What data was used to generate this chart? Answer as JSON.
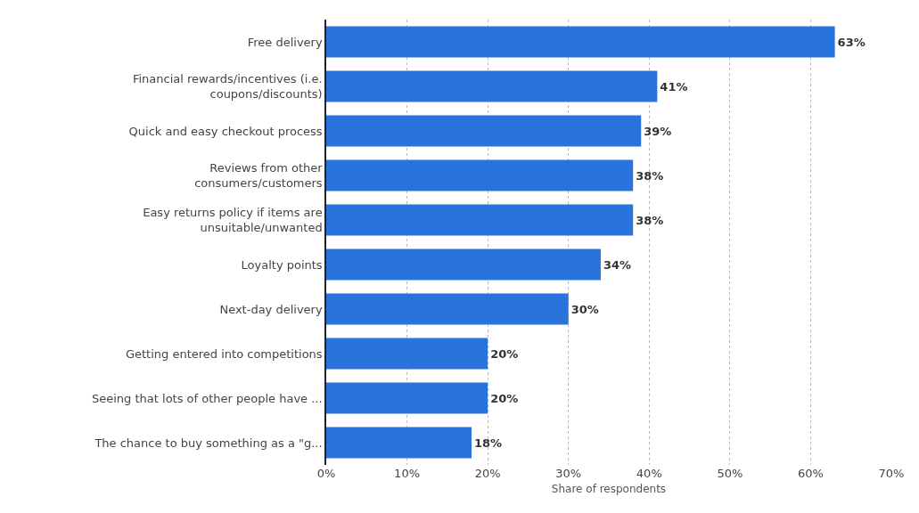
{
  "chart_data": {
    "type": "bar",
    "orientation": "horizontal",
    "xlabel": "Share of respondents",
    "categories": [
      "Free delivery",
      "Financial rewards/incentives (i.e.\ncoupons/discounts)",
      "Quick and easy checkout process",
      "Reviews from other\nconsumers/customers",
      "Easy returns policy if items are\nunsuitable/unwanted",
      "Loyalty points",
      "Next-day delivery",
      "Getting entered into competitions",
      "Seeing that lots of other people have ...",
      "The chance to buy something as a \"g..."
    ],
    "values": [
      63,
      41,
      39,
      38,
      38,
      34,
      30,
      20,
      20,
      18
    ],
    "value_labels": [
      "63%",
      "41%",
      "39%",
      "38%",
      "38%",
      "34%",
      "30%",
      "20%",
      "20%",
      "18%"
    ],
    "color": "#2874dc",
    "xlim": [
      0,
      70
    ],
    "xticks": [
      {
        "value": 0,
        "label": "0%"
      },
      {
        "value": 10,
        "label": "10%"
      },
      {
        "value": 20,
        "label": "20%"
      },
      {
        "value": 30,
        "label": "30%"
      },
      {
        "value": 40,
        "label": "40%"
      },
      {
        "value": 50,
        "label": "50%"
      },
      {
        "value": 60,
        "label": "60%"
      },
      {
        "value": 70,
        "label": "70%"
      }
    ],
    "grid": "x",
    "legend": false
  }
}
